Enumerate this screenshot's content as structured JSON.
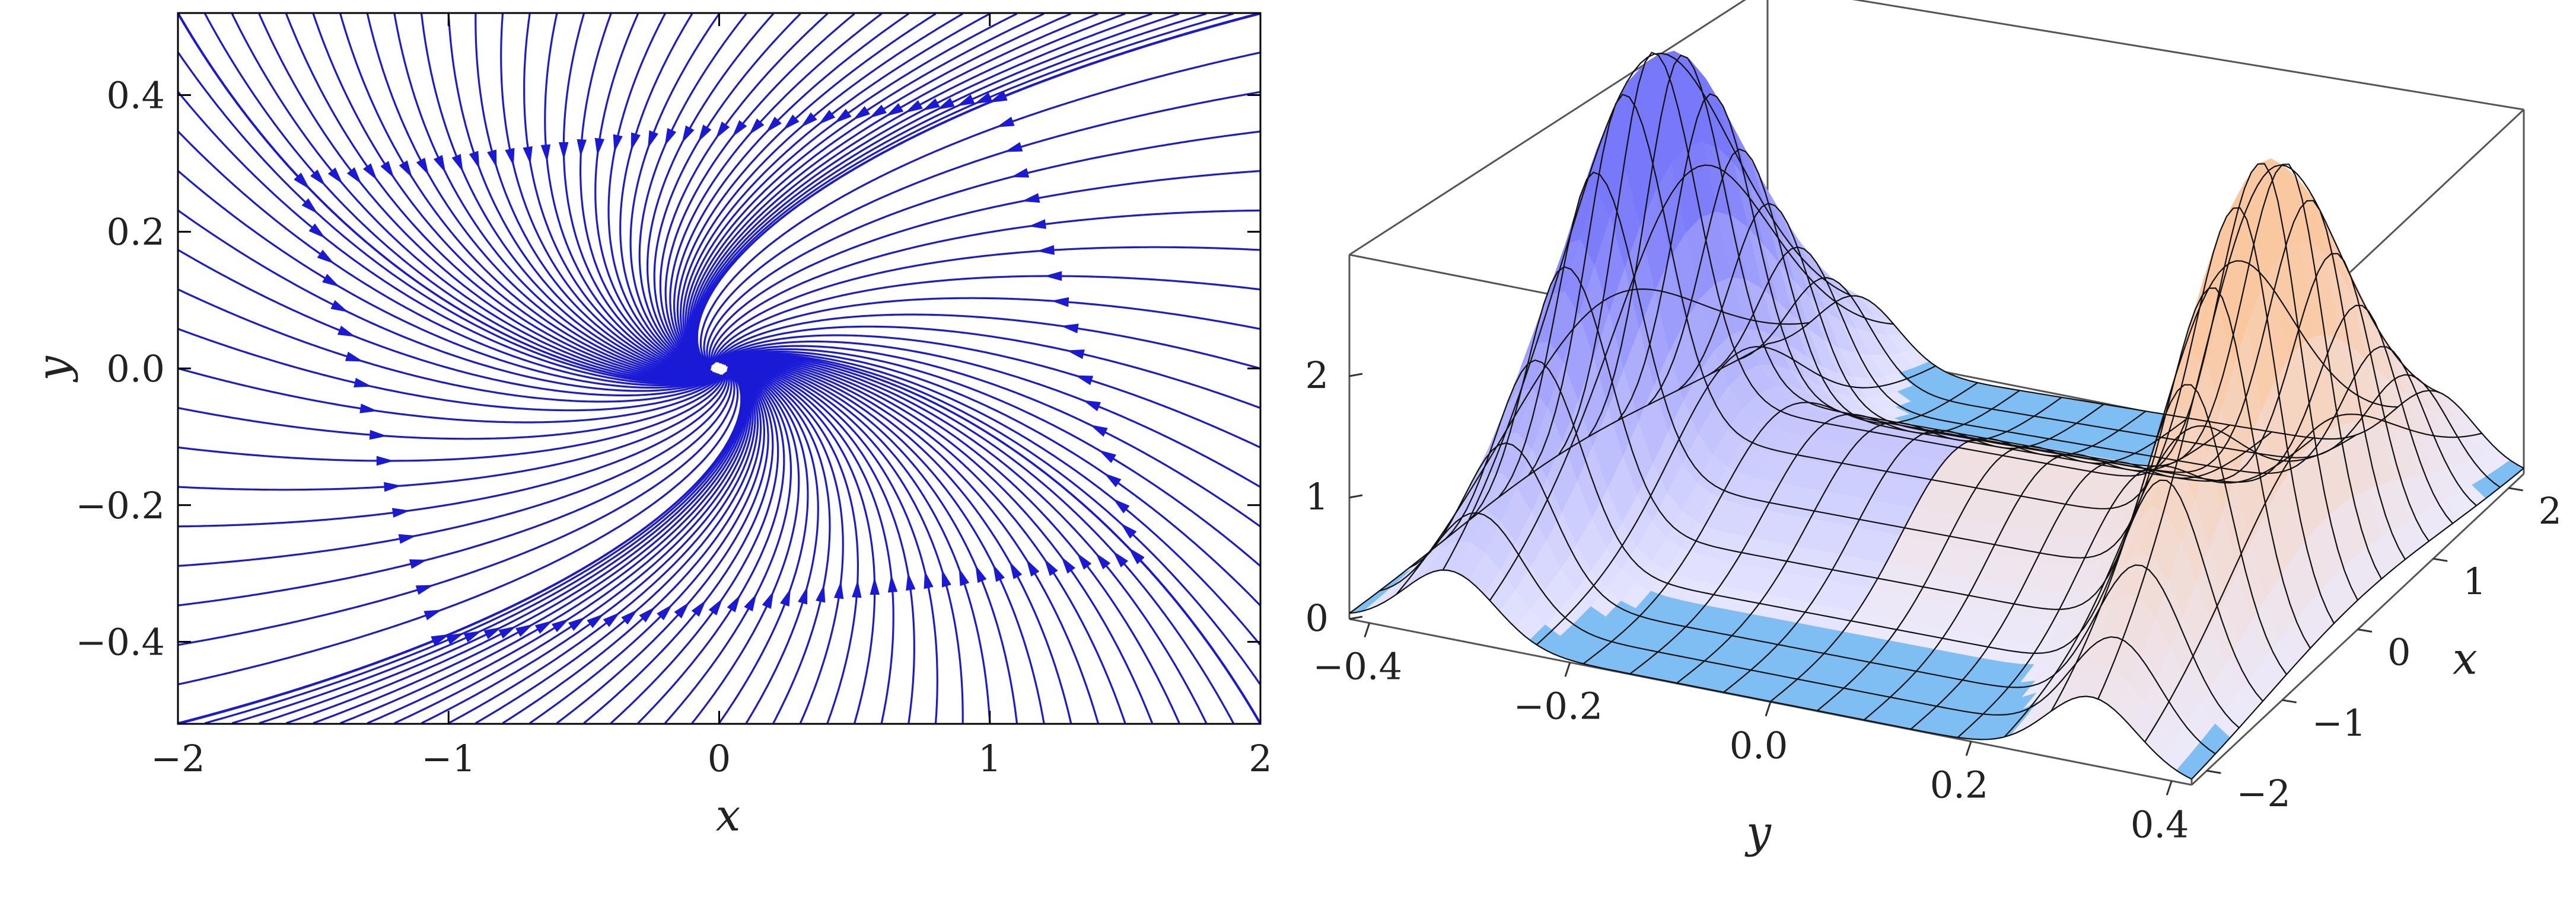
{
  "chart_data": [
    {
      "type": "streamplot",
      "xlabel": "x",
      "ylabel": "y",
      "xlim": [
        -2,
        2
      ],
      "ylim": [
        -0.52,
        0.52
      ],
      "x_ticks": [
        {
          "value": -2,
          "label": "−2"
        },
        {
          "value": -1,
          "label": "−1"
        },
        {
          "value": 0,
          "label": "0"
        },
        {
          "value": 1,
          "label": "1"
        },
        {
          "value": 2,
          "label": "2"
        }
      ],
      "y_ticks": [
        {
          "value": 0.4,
          "label": "0.4"
        },
        {
          "value": 0.2,
          "label": "0.2"
        },
        {
          "value": 0.0,
          "label": "0.0"
        },
        {
          "value": -0.2,
          "label": "−0.2"
        },
        {
          "value": -0.4,
          "label": "−0.4"
        }
      ],
      "field": {
        "description_of_visible_flow": "spiral sink at origin, rotation sense and inflow read from arrows",
        "center": [
          0,
          0
        ],
        "rotation_strength": 0.22,
        "inflow_x": 1.0,
        "inflow_y": 1.0
      },
      "line_color": "#1a1ad6",
      "grid": false
    },
    {
      "type": "surface3d",
      "xlabel": "x",
      "ylabel": "y",
      "x_ticks": [
        {
          "value": -2,
          "label": "−2"
        },
        {
          "value": -1,
          "label": "−1"
        },
        {
          "value": 0,
          "label": "0"
        },
        {
          "value": 1,
          "label": "1"
        },
        {
          "value": 2,
          "label": "2"
        }
      ],
      "y_ticks": [
        {
          "value": -0.4,
          "label": "−0.4"
        },
        {
          "value": -0.2,
          "label": "−0.2"
        },
        {
          "value": 0.0,
          "label": "0.0"
        },
        {
          "value": 0.2,
          "label": "0.2"
        },
        {
          "value": 0.4,
          "label": "0.4"
        }
      ],
      "z_ticks": [
        {
          "value": 0,
          "label": "0"
        },
        {
          "value": 1,
          "label": "1"
        },
        {
          "value": 2,
          "label": "2"
        }
      ],
      "xlim": [
        -2.2,
        2.2
      ],
      "ylim": [
        -0.42,
        0.42
      ],
      "zlim": [
        0,
        3
      ],
      "peaks": [
        {
          "y": -0.32,
          "z": 2.8,
          "width": 0.045
        },
        {
          "y": 0.32,
          "z": 2.8,
          "width": 0.045
        }
      ],
      "ridge_baseline": 0.9,
      "base_color": "#7fbef2",
      "grid": false
    }
  ]
}
